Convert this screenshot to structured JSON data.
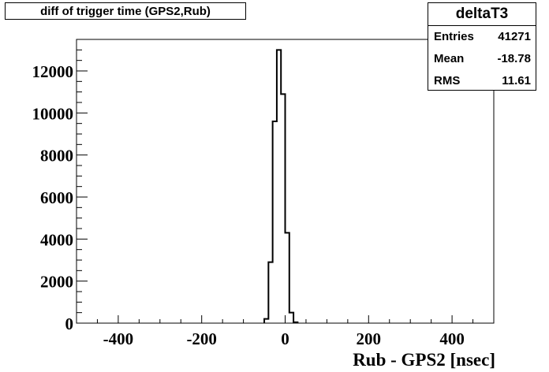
{
  "chart_data": {
    "type": "bar",
    "title": "diff of trigger time (GPS2,Rub)",
    "xlabel": "Rub - GPS2 [nsec]",
    "ylabel": "",
    "xlim": [
      -500,
      500
    ],
    "ylim": [
      0,
      13500
    ],
    "xticks": [
      -400,
      -200,
      0,
      200,
      400
    ],
    "yticks": [
      0,
      2000,
      4000,
      6000,
      8000,
      10000,
      12000
    ],
    "bin_width": 10,
    "bins": [
      {
        "x_low": -50,
        "x_high": -40,
        "value": 200
      },
      {
        "x_low": -40,
        "x_high": -30,
        "value": 2900
      },
      {
        "x_low": -30,
        "x_high": -20,
        "value": 9600
      },
      {
        "x_low": -20,
        "x_high": -10,
        "value": 13000
      },
      {
        "x_low": -10,
        "x_high": 0,
        "value": 10900
      },
      {
        "x_low": 0,
        "x_high": 10,
        "value": 4300
      },
      {
        "x_low": 10,
        "x_high": 20,
        "value": 500
      },
      {
        "x_low": 20,
        "x_high": 30,
        "value": 40
      }
    ],
    "grid": false,
    "stats": {
      "name": "deltaT3",
      "rows": [
        {
          "key": "Entries",
          "value": "41271"
        },
        {
          "key": "Mean",
          "value": "-18.78"
        },
        {
          "key": "RMS",
          "value": "11.61"
        }
      ]
    }
  }
}
